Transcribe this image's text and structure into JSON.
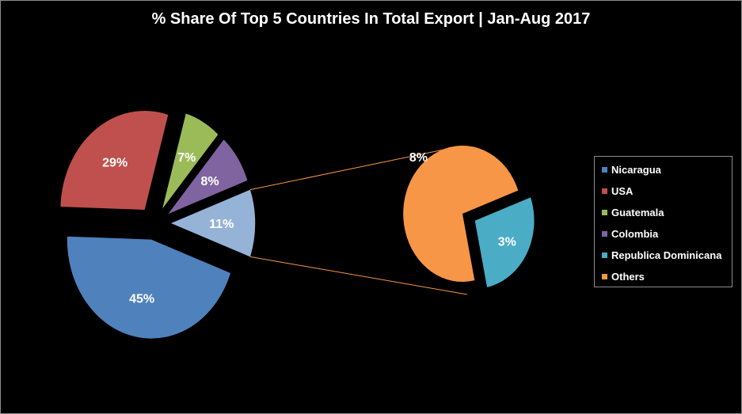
{
  "chart_data": {
    "type": "pie",
    "subtype": "pie-of-pie",
    "title": "% Share Of Top 5 Countries In Total Export | Jan-Aug 2017",
    "legend_position": "right",
    "main_pie": [
      {
        "name": "Nicaragua",
        "value": 45,
        "label": "45%",
        "color": "#4f81bd"
      },
      {
        "name": "USA",
        "value": 29,
        "label": "29%",
        "color": "#c0504d"
      },
      {
        "name": "Guatemala",
        "value": 7,
        "label": "7%",
        "color": "#9bbb59"
      },
      {
        "name": "Colombia",
        "value": 8,
        "label": "8%",
        "color": "#8064a2"
      },
      {
        "name": "Others",
        "value": 11,
        "label": "11%",
        "color": "#95b3d7",
        "exploded": true
      }
    ],
    "secondary_pie": [
      {
        "name": "Republica Dominicana",
        "value": 3,
        "label": "3%",
        "color": "#4bacc6"
      },
      {
        "name": "Others",
        "value": 8,
        "label": "8%",
        "color": "#f79646"
      }
    ],
    "connector_color": "#f79646"
  },
  "legend": [
    {
      "name": "Nicaragua",
      "color": "#4f81bd"
    },
    {
      "name": "USA",
      "color": "#c0504d"
    },
    {
      "name": "Guatemala",
      "color": "#9bbb59"
    },
    {
      "name": "Colombia",
      "color": "#8064a2"
    },
    {
      "name": "Republica Dominicana",
      "color": "#4bacc6"
    },
    {
      "name": "Others",
      "color": "#f79646"
    }
  ]
}
